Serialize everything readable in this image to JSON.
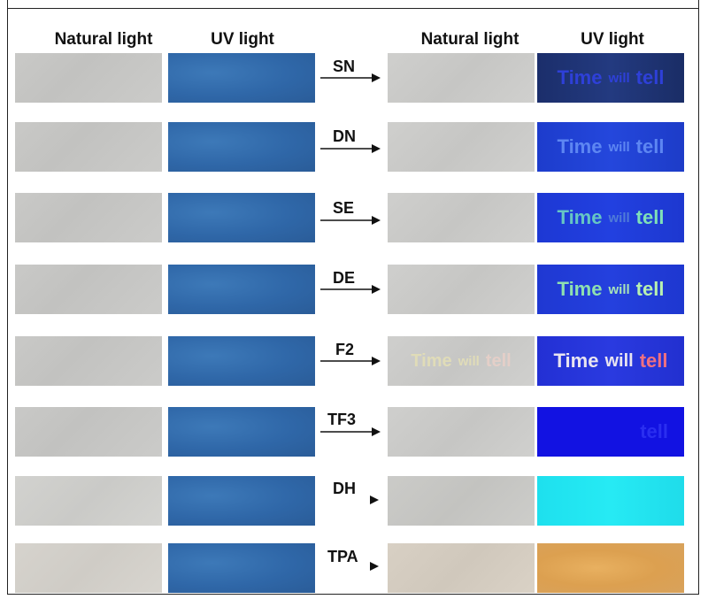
{
  "headers": {
    "left_natural": "Natural light",
    "left_uv": "UV light",
    "right_natural": "Natural light",
    "right_uv": "UV light"
  },
  "rows": [
    {
      "label": "SN",
      "uv_text": {
        "w1": "Time",
        "w2": "will",
        "w3": "tell"
      }
    },
    {
      "label": "DN",
      "uv_text": {
        "w1": "Time",
        "w2": "will",
        "w3": "tell"
      }
    },
    {
      "label": "SE",
      "uv_text": {
        "w1": "Time",
        "w2": "will",
        "w3": "tell"
      }
    },
    {
      "label": "DE",
      "uv_text": {
        "w1": "Time",
        "w2": "will",
        "w3": "tell"
      }
    },
    {
      "label": "F2",
      "uv_text": {
        "w1": "Time",
        "w2": "will",
        "w3": "tell"
      },
      "natural_text": {
        "w1": "Time",
        "w2": "will",
        "w3": "tell"
      }
    },
    {
      "label": "TF3",
      "uv_text": {
        "w3": "tell"
      }
    },
    {
      "label": "DH"
    },
    {
      "label": "TPA"
    }
  ],
  "colors": {
    "uv_substrate": "#2f67a8",
    "natural_substrate": "#c6c6c4",
    "sn_uv_bg": "#1a2f6e",
    "dn_uv_bg": "#1f3fd0",
    "se_uv_bg": "#1e3bd8",
    "de_uv_bg": "#1f3ad6",
    "f2_uv_bg": "#2233d8",
    "tf3_uv_bg": "#1010e0",
    "dh_uv_bg": "#1fe4f0",
    "tpa_uv_bg": "#e0a650"
  }
}
